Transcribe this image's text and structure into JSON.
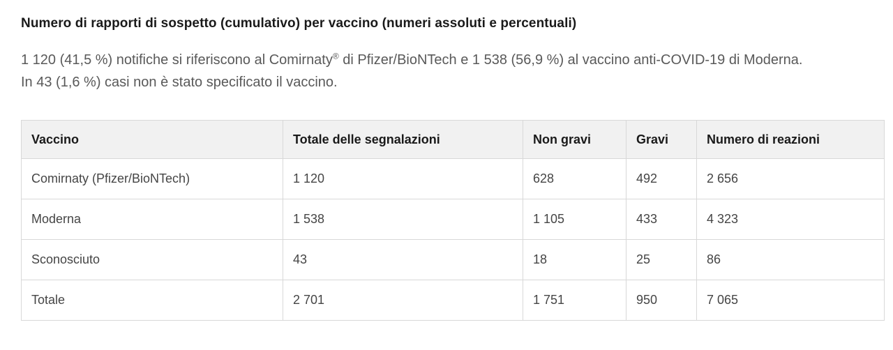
{
  "heading": "Numero di rapporti di sospetto (cumulativo) per vaccino (numeri assoluti e percentuali)",
  "intro": {
    "text_before_reg": "1 120 (41,5 %) notifiche si riferiscono al Comirnaty",
    "registered_mark": "®",
    "text_after_reg": " di Pfizer/BioNTech e 1 538 (56,9 %) al vaccino anti-COVID-19 di Moderna. In 43 (1,6 %) casi non è stato specificato il vaccino."
  },
  "table": {
    "columns": {
      "vaccine": "Vaccino",
      "total": "Totale delle segnalazioni",
      "non_serious": "Non gravi",
      "serious": "Gravi",
      "reactions": "Numero di reazioni"
    },
    "rows": [
      {
        "vaccine": "Comirnaty (Pfizer/BioNTech)",
        "total": "1 120",
        "non_serious": "628",
        "serious": "492",
        "reactions": "2 656"
      },
      {
        "vaccine": "Moderna",
        "total": "1 538",
        "non_serious": "1 105",
        "serious": "433",
        "reactions": "4 323"
      },
      {
        "vaccine": "Sconosciuto",
        "total": "43",
        "non_serious": "18",
        "serious": "25",
        "reactions": "86"
      },
      {
        "vaccine": "Totale",
        "total": "2 701",
        "non_serious": "1 751",
        "serious": "950",
        "reactions": "7 065"
      }
    ]
  },
  "colors": {
    "heading_text": "#1a1a1a",
    "body_text": "#595959",
    "cell_text": "#454545",
    "table_border": "#d8d8d8",
    "header_background": "#f1f1f1",
    "page_background": "#ffffff"
  }
}
